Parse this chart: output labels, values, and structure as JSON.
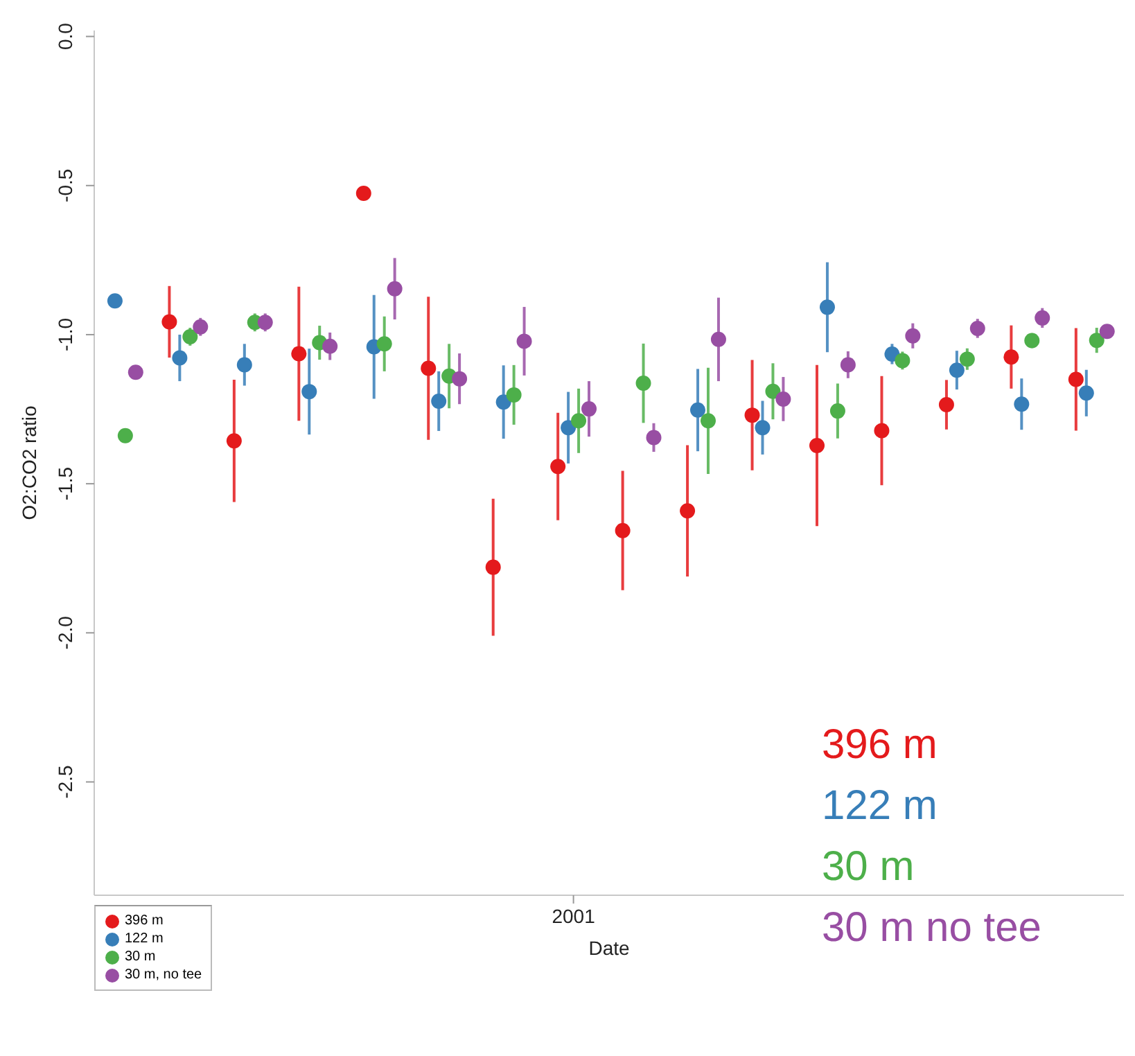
{
  "chart_data": {
    "type": "scatter",
    "xlabel": "Date",
    "ylabel": "O2:CO2 ratio",
    "categories": [
      null,
      null,
      null,
      null,
      null,
      null,
      null,
      "2001",
      null,
      null,
      null,
      null,
      null,
      null,
      null,
      null
    ],
    "ylim": [
      -2.88,
      0.02
    ],
    "yticks": [
      {
        "value": 0,
        "label": "0.0"
      },
      {
        "value": -0.5,
        "label": "-0.5"
      },
      {
        "value": -1,
        "label": "-1.0"
      },
      {
        "value": -1.5,
        "label": "-1.5"
      },
      {
        "value": -2,
        "label": "-2.0"
      },
      {
        "value": -2.5,
        "label": "-2.5"
      }
    ],
    "grid": false,
    "legend": "bottom left",
    "marker": "circle",
    "annotations": [
      "396 m",
      "122 m",
      "30 m",
      "30 m no tee"
    ],
    "series": [
      {
        "name": "396 m",
        "color": "#e41a1c",
        "values": [
          null,
          -0.957,
          -1.356,
          -1.064,
          -0.526,
          -1.113,
          -1.78,
          -1.442,
          -1.657,
          -1.591,
          -1.27,
          -1.372,
          -1.322,
          -1.235,
          -1.075,
          -1.15
        ],
        "errors": [
          null,
          0.12,
          0.205,
          0.225,
          null,
          0.24,
          0.23,
          0.18,
          0.2,
          0.22,
          0.185,
          0.27,
          0.183,
          0.083,
          0.106,
          0.172
        ]
      },
      {
        "name": "122 m",
        "color": "#377eb8",
        "values": [
          -0.887,
          -1.078,
          -1.101,
          -1.191,
          -1.041,
          -1.223,
          -1.226,
          -1.312,
          null,
          -1.253,
          -1.312,
          -0.908,
          -1.065,
          -1.119,
          -1.233,
          -1.196
        ],
        "errors": [
          null,
          0.078,
          0.07,
          0.144,
          0.174,
          0.1,
          0.123,
          0.12,
          null,
          0.138,
          0.09,
          0.151,
          0.034,
          0.065,
          0.086,
          0.078
        ]
      },
      {
        "name": "30 m",
        "color": "#4daf4a",
        "values": [
          -1.339,
          -1.007,
          -0.959,
          -1.027,
          -1.031,
          -1.139,
          -1.202,
          -1.289,
          -1.163,
          -1.289,
          -1.19,
          -1.256,
          -1.087,
          -1.082,
          -1.02,
          -1.019
        ],
        "errors": [
          null,
          0.03,
          0.03,
          0.057,
          0.092,
          0.108,
          0.1,
          0.108,
          0.133,
          0.178,
          0.094,
          0.092,
          0.03,
          0.036,
          0.025,
          0.042
        ]
      },
      {
        "name": "30 m, no tee",
        "color": "#984ea3",
        "values": [
          -1.126,
          -0.974,
          -0.959,
          -1.039,
          -0.846,
          -1.148,
          -1.022,
          -1.249,
          -1.345,
          -1.016,
          -1.216,
          -1.101,
          -1.004,
          -0.979,
          -0.944,
          -0.989
        ],
        "errors": [
          null,
          0.03,
          0.03,
          0.046,
          0.103,
          0.085,
          0.115,
          0.093,
          0.048,
          0.14,
          0.074,
          0.045,
          0.042,
          0.032,
          0.033,
          0.02
        ]
      }
    ]
  }
}
